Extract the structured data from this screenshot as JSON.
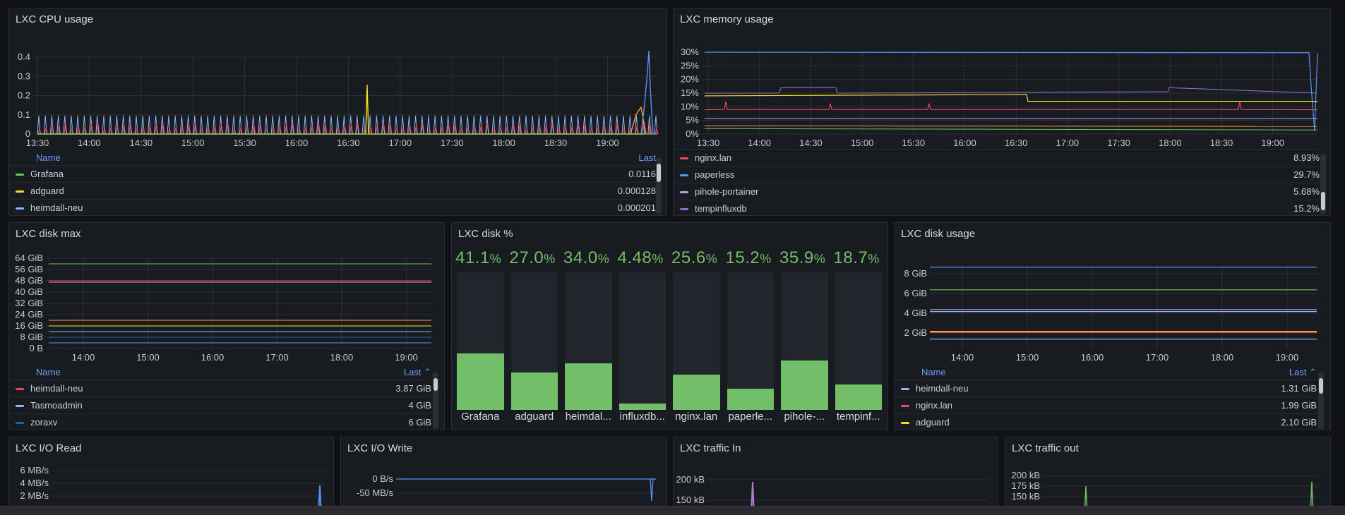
{
  "colors": {
    "green": "#73bf69",
    "yellow": "#fade2a",
    "blue": "#5794f2",
    "red": "#f2495c",
    "orange": "#ff9830",
    "purple": "#b877d9",
    "darkblue": "#1f60c4",
    "lightblue": "#8ab8ff",
    "violet": "#8f3bb8"
  },
  "cpu": {
    "title": "LXC CPU usage",
    "y_ticks": [
      "0.4",
      "0.3",
      "0.2",
      "0.1",
      "0"
    ],
    "x_ticks": [
      "13:30",
      "14:00",
      "14:30",
      "15:00",
      "15:30",
      "16:00",
      "16:30",
      "17:00",
      "17:30",
      "18:00",
      "18:30",
      "19:00"
    ],
    "legend_name": "Name",
    "legend_last": "Last",
    "rows": [
      {
        "name": "Grafana",
        "value": "0.0116",
        "color": "#73bf69"
      },
      {
        "name": "adguard",
        "value": "0.000128",
        "color": "#fade2a"
      },
      {
        "name": "heimdall-neu",
        "value": "0.000201",
        "color": "#8ab8ff"
      }
    ]
  },
  "mem": {
    "title": "LXC memory usage",
    "y_ticks": [
      "30%",
      "25%",
      "20%",
      "15%",
      "10%",
      "5%",
      "0%"
    ],
    "x_ticks": [
      "13:30",
      "14:00",
      "14:30",
      "15:00",
      "15:30",
      "16:00",
      "16:30",
      "17:00",
      "17:30",
      "18:00",
      "18:30",
      "19:00"
    ],
    "rows": [
      {
        "name": "nginx.lan",
        "value": "8.93%",
        "color": "#f2495c"
      },
      {
        "name": "paperless",
        "value": "29.7%",
        "color": "#5794f2"
      },
      {
        "name": "pihole-portainer",
        "value": "5.68%",
        "color": "#ca95e5"
      },
      {
        "name": "tempinfluxdb",
        "value": "15.2%",
        "color": "#8f6cd0"
      }
    ]
  },
  "diskmax": {
    "title": "LXC disk max",
    "y_ticks": [
      "64 GiB",
      "56 GiB",
      "48 GiB",
      "40 GiB",
      "32 GiB",
      "24 GiB",
      "16 GiB",
      "8 GiB",
      "0 B"
    ],
    "x_ticks": [
      "14:00",
      "15:00",
      "16:00",
      "17:00",
      "18:00",
      "19:00"
    ],
    "legend_name": "Name",
    "legend_last": "Last ⌃",
    "rows": [
      {
        "name": "heimdall-neu",
        "value": "3.87 GiB",
        "color": "#f2495c"
      },
      {
        "name": "Tasmoadmin",
        "value": "4 GiB",
        "color": "#8ab8ff"
      },
      {
        "name": "zoraxv",
        "value": "6 GiB",
        "color": "#1f60c4"
      }
    ]
  },
  "diskpct": {
    "title": "LXC disk %",
    "unit": "%",
    "chart_data": {
      "type": "bar",
      "categories": [
        "Grafana",
        "adguard",
        "heimdal...",
        "influxdb...",
        "nginx.lan",
        "paperle...",
        "pihole-...",
        "tempinf..."
      ],
      "display": [
        "41.1",
        "27.0",
        "34.0",
        "4.48",
        "25.6",
        "15.2",
        "35.9",
        "18.7"
      ],
      "values": [
        41.1,
        27.0,
        34.0,
        4.48,
        25.6,
        15.2,
        35.9,
        18.7
      ],
      "ylim": [
        0,
        100
      ]
    }
  },
  "diskusage": {
    "title": "LXC disk usage",
    "y_ticks": [
      "8 GiB",
      "6 GiB",
      "4 GiB",
      "2 GiB"
    ],
    "x_ticks": [
      "14:00",
      "15:00",
      "16:00",
      "17:00",
      "18:00",
      "19:00"
    ],
    "legend_name": "Name",
    "legend_last": "Last ⌃",
    "rows": [
      {
        "name": "heimdall-neu",
        "value": "1.31 GiB",
        "color": "#8ab8ff"
      },
      {
        "name": "nginx.lan",
        "value": "1.99 GiB",
        "color": "#f2495c"
      },
      {
        "name": "adguard",
        "value": "2.10 GiB",
        "color": "#fade2a"
      }
    ]
  },
  "ioread": {
    "title": "LXC I/O Read",
    "y_ticks": [
      "6 MB/s",
      "4 MB/s",
      "2 MB/s"
    ]
  },
  "iowrite": {
    "title": "LXC I/O Write",
    "y_ticks": [
      "0 B/s",
      "-50 MB/s"
    ]
  },
  "trafin": {
    "title": "LXC traffic In",
    "y_ticks": [
      "200 kB",
      "150 kB"
    ]
  },
  "trafout": {
    "title": "LXC traffic out",
    "y_ticks": [
      "200 kB",
      "175 kB",
      "150 kB"
    ]
  }
}
